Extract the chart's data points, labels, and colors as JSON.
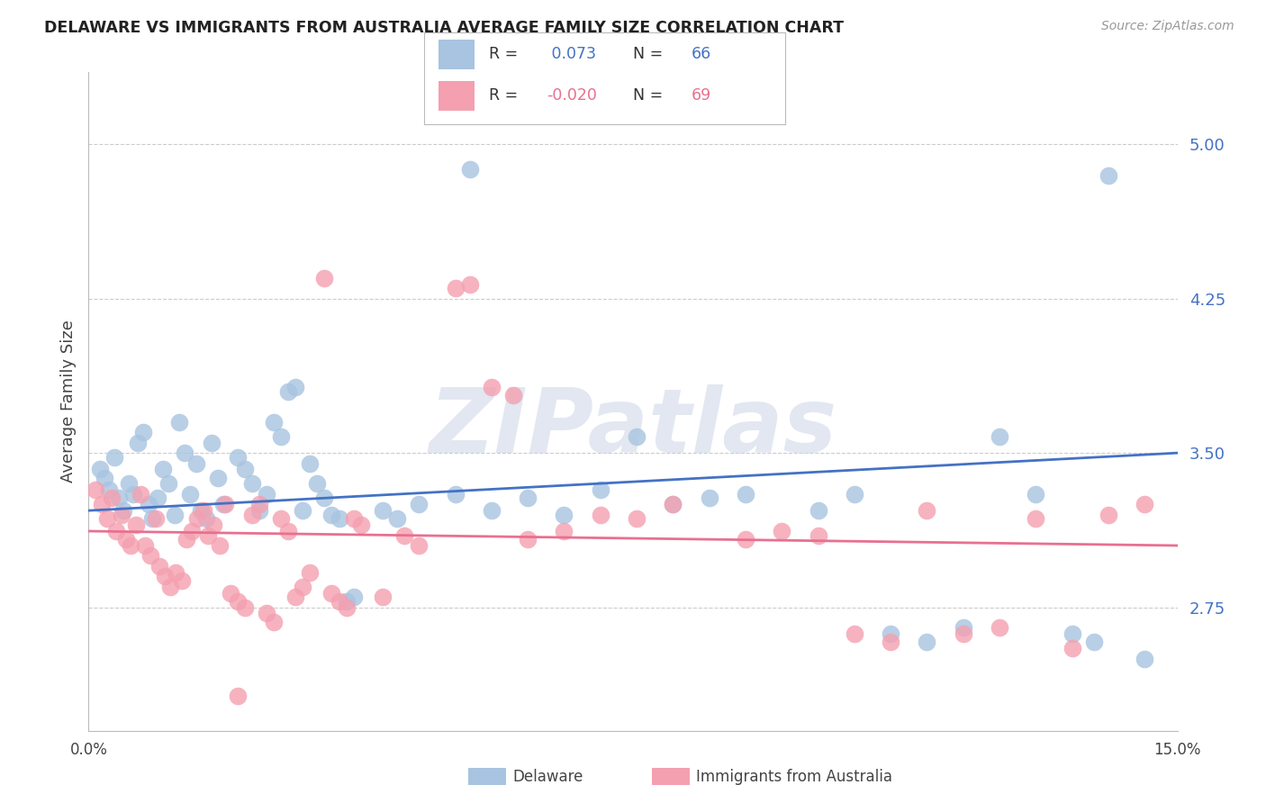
{
  "title": "DELAWARE VS IMMIGRANTS FROM AUSTRALIA AVERAGE FAMILY SIZE CORRELATION CHART",
  "source": "Source: ZipAtlas.com",
  "ylabel": "Average Family Size",
  "watermark": "ZIPatlas",
  "xlim": [
    0.0,
    15.0
  ],
  "ylim": [
    2.15,
    5.35
  ],
  "yticks": [
    2.75,
    3.5,
    4.25,
    5.0
  ],
  "xtick_vals": [
    0.0,
    2.5,
    5.0,
    7.5,
    10.0,
    12.5,
    15.0
  ],
  "blue_color": "#a8c4e0",
  "pink_color": "#f4a0b0",
  "blue_line_color": "#4472c4",
  "pink_line_color": "#e87090",
  "blue_label": "Delaware",
  "pink_label": "Immigrants from Australia",
  "blue_scatter": [
    [
      0.15,
      3.42
    ],
    [
      0.22,
      3.38
    ],
    [
      0.28,
      3.32
    ],
    [
      0.35,
      3.48
    ],
    [
      0.42,
      3.28
    ],
    [
      0.48,
      3.22
    ],
    [
      0.55,
      3.35
    ],
    [
      0.62,
      3.3
    ],
    [
      0.68,
      3.55
    ],
    [
      0.75,
      3.6
    ],
    [
      0.82,
      3.25
    ],
    [
      0.88,
      3.18
    ],
    [
      0.95,
      3.28
    ],
    [
      1.02,
      3.42
    ],
    [
      1.1,
      3.35
    ],
    [
      1.18,
      3.2
    ],
    [
      1.25,
      3.65
    ],
    [
      1.32,
      3.5
    ],
    [
      1.4,
      3.3
    ],
    [
      1.48,
      3.45
    ],
    [
      1.55,
      3.22
    ],
    [
      1.62,
      3.18
    ],
    [
      1.7,
      3.55
    ],
    [
      1.78,
      3.38
    ],
    [
      1.85,
      3.25
    ],
    [
      2.05,
      3.48
    ],
    [
      2.15,
      3.42
    ],
    [
      2.25,
      3.35
    ],
    [
      2.35,
      3.22
    ],
    [
      2.45,
      3.3
    ],
    [
      2.55,
      3.65
    ],
    [
      2.65,
      3.58
    ],
    [
      2.75,
      3.8
    ],
    [
      2.85,
      3.82
    ],
    [
      2.95,
      3.22
    ],
    [
      3.05,
      3.45
    ],
    [
      3.15,
      3.35
    ],
    [
      3.25,
      3.28
    ],
    [
      3.35,
      3.2
    ],
    [
      3.45,
      3.18
    ],
    [
      3.55,
      2.78
    ],
    [
      3.65,
      2.8
    ],
    [
      4.05,
      3.22
    ],
    [
      4.25,
      3.18
    ],
    [
      4.55,
      3.25
    ],
    [
      5.05,
      3.3
    ],
    [
      5.25,
      4.88
    ],
    [
      5.55,
      3.22
    ],
    [
      6.05,
      3.28
    ],
    [
      6.55,
      3.2
    ],
    [
      7.05,
      3.32
    ],
    [
      7.55,
      3.58
    ],
    [
      8.05,
      3.25
    ],
    [
      8.55,
      3.28
    ],
    [
      9.05,
      3.3
    ],
    [
      10.05,
      3.22
    ],
    [
      10.55,
      3.3
    ],
    [
      11.05,
      2.62
    ],
    [
      11.55,
      2.58
    ],
    [
      12.05,
      2.65
    ],
    [
      12.55,
      3.58
    ],
    [
      13.05,
      3.3
    ],
    [
      13.55,
      2.62
    ],
    [
      13.85,
      2.58
    ],
    [
      14.05,
      4.85
    ],
    [
      14.55,
      2.5
    ]
  ],
  "pink_scatter": [
    [
      0.1,
      3.32
    ],
    [
      0.18,
      3.25
    ],
    [
      0.25,
      3.18
    ],
    [
      0.32,
      3.28
    ],
    [
      0.38,
      3.12
    ],
    [
      0.45,
      3.2
    ],
    [
      0.52,
      3.08
    ],
    [
      0.58,
      3.05
    ],
    [
      0.65,
      3.15
    ],
    [
      0.72,
      3.3
    ],
    [
      0.78,
      3.05
    ],
    [
      0.85,
      3.0
    ],
    [
      0.92,
      3.18
    ],
    [
      0.98,
      2.95
    ],
    [
      1.05,
      2.9
    ],
    [
      1.12,
      2.85
    ],
    [
      1.2,
      2.92
    ],
    [
      1.28,
      2.88
    ],
    [
      1.35,
      3.08
    ],
    [
      1.42,
      3.12
    ],
    [
      1.5,
      3.18
    ],
    [
      1.58,
      3.22
    ],
    [
      1.65,
      3.1
    ],
    [
      1.72,
      3.15
    ],
    [
      1.8,
      3.05
    ],
    [
      1.88,
      3.25
    ],
    [
      1.95,
      2.82
    ],
    [
      2.05,
      2.78
    ],
    [
      2.15,
      2.75
    ],
    [
      2.25,
      3.2
    ],
    [
      2.35,
      3.25
    ],
    [
      2.45,
      2.72
    ],
    [
      2.55,
      2.68
    ],
    [
      2.65,
      3.18
    ],
    [
      2.75,
      3.12
    ],
    [
      2.85,
      2.8
    ],
    [
      2.95,
      2.85
    ],
    [
      3.05,
      2.92
    ],
    [
      3.25,
      4.35
    ],
    [
      3.35,
      2.82
    ],
    [
      3.45,
      2.78
    ],
    [
      3.55,
      2.75
    ],
    [
      3.65,
      3.18
    ],
    [
      3.75,
      3.15
    ],
    [
      4.05,
      2.8
    ],
    [
      4.35,
      3.1
    ],
    [
      4.55,
      3.05
    ],
    [
      5.05,
      4.3
    ],
    [
      5.25,
      4.32
    ],
    [
      5.55,
      3.82
    ],
    [
      5.85,
      3.78
    ],
    [
      6.05,
      3.08
    ],
    [
      6.55,
      3.12
    ],
    [
      7.05,
      3.2
    ],
    [
      7.55,
      3.18
    ],
    [
      8.05,
      3.25
    ],
    [
      9.05,
      3.08
    ],
    [
      9.55,
      3.12
    ],
    [
      10.05,
      3.1
    ],
    [
      10.55,
      2.62
    ],
    [
      11.05,
      2.58
    ],
    [
      11.55,
      3.22
    ],
    [
      12.05,
      2.62
    ],
    [
      12.55,
      2.65
    ],
    [
      13.05,
      3.18
    ],
    [
      13.55,
      2.55
    ],
    [
      14.05,
      3.2
    ],
    [
      14.55,
      3.25
    ],
    [
      2.05,
      2.32
    ]
  ],
  "blue_trend_x": [
    0.0,
    15.0
  ],
  "blue_trend_y": [
    3.22,
    3.5
  ],
  "pink_trend_x": [
    0.0,
    15.0
  ],
  "pink_trend_y": [
    3.12,
    3.05
  ]
}
